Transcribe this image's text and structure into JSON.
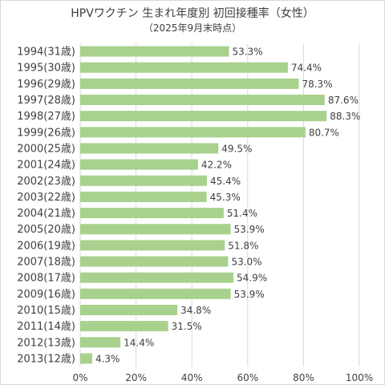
{
  "chart_data": {
    "type": "bar",
    "orientation": "horizontal",
    "title": "HPVワクチン 生まれ年度別 初回接種率（女性）",
    "subtitle": "（2025年9月末時点）",
    "categories": [
      "1994(31歳)",
      "1995(30歳)",
      "1996(29歳)",
      "1997(28歳)",
      "1998(27歳)",
      "1999(26歳)",
      "2000(25歳)",
      "2001(24歳)",
      "2002(23歳)",
      "2003(22歳)",
      "2004(21歳)",
      "2005(20歳)",
      "2006(19歳)",
      "2007(18歳)",
      "2008(17歳)",
      "2009(16歳)",
      "2010(15歳)",
      "2011(14歳)",
      "2012(13歳)",
      "2013(12歳)"
    ],
    "values": [
      53.3,
      74.4,
      78.3,
      87.6,
      88.3,
      80.7,
      49.5,
      42.2,
      45.4,
      45.3,
      51.4,
      53.9,
      51.8,
      53.0,
      54.9,
      53.9,
      34.8,
      31.5,
      14.4,
      4.3
    ],
    "value_labels": [
      "53.3%",
      "74.4%",
      "78.3%",
      "87.6%",
      "88.3%",
      "80.7%",
      "49.5%",
      "42.2%",
      "45.4%",
      "45.3%",
      "51.4%",
      "53.9%",
      "51.8%",
      "53.0%",
      "54.9%",
      "53.9%",
      "34.8%",
      "31.5%",
      "14.4%",
      "4.3%"
    ],
    "xticks": [
      0,
      20,
      40,
      60,
      80,
      100
    ],
    "xtick_labels": [
      "0%",
      "20%",
      "40%",
      "60%",
      "80%",
      "100%"
    ],
    "xlim": [
      0,
      100
    ],
    "grid": true,
    "legend": "none",
    "bar_color": "#a9d18e",
    "grid_color": "#d9d9d9",
    "text_color": "#3f3f3f"
  }
}
